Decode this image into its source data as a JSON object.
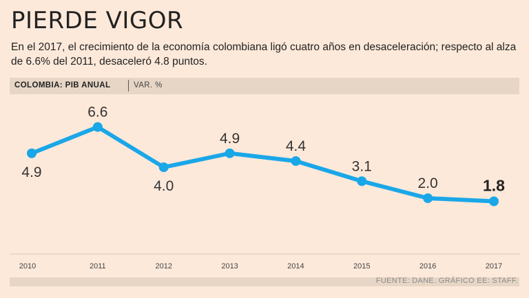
{
  "header": {
    "title": "PIERDE VIGOR",
    "subtitle": "En el 2017, el crecimiento de la economía colombiana ligó cuatro años en desaceleración; respecto al alza de 6.6% del 2011, desaceleró 4.8 puntos."
  },
  "chart_header": {
    "main": "COLOMBIA: PIB ANUAL",
    "unit": "VAR. %"
  },
  "footer": {
    "source": "FUENTE: DANE. GRÁFICO EE: STAFF."
  },
  "colors": {
    "background": "#fde9da",
    "line": "#1aa7e8",
    "label": "#333333"
  },
  "chart_data": {
    "type": "line",
    "title": "COLOMBIA: PIB ANUAL",
    "ylabel": "VAR. %",
    "xlabel": "",
    "categories": [
      "2010",
      "2011",
      "2012",
      "2013",
      "2014",
      "2015",
      "2016",
      "2017"
    ],
    "series": [
      {
        "name": "PIB anual (var. %)",
        "values": [
          4.9,
          6.6,
          4.0,
          4.9,
          4.4,
          3.1,
          2.0,
          1.8
        ],
        "labels": [
          "4.9",
          "6.6",
          "4.0",
          "4.9",
          "4.4",
          "3.1",
          "2.0",
          "1.8"
        ],
        "label_positions": [
          "below",
          "above",
          "below",
          "above",
          "above",
          "above",
          "above",
          "above"
        ],
        "highlight_last": true
      }
    ],
    "ylim": [
      0,
      8
    ],
    "grid": false,
    "legend": "none"
  }
}
